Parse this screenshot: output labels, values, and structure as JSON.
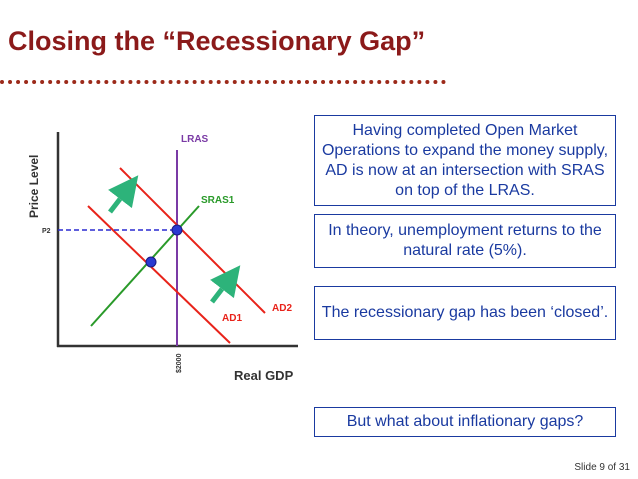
{
  "slide": {
    "title": "Closing the “Recessionary Gap”",
    "number_label": "Slide 9 of 31"
  },
  "graph": {
    "y_axis_label": "Price Level",
    "x_axis_label": "Real GDP",
    "price_tick_label": "P2",
    "gdp_tick_label": "$2000",
    "curves": {
      "lras": "LRAS",
      "sras": "SRAS1",
      "ad1": "AD1",
      "ad2": "AD2"
    },
    "colors": {
      "lras": "#7a3aa5",
      "sras": "#2a9a2a",
      "ad": "#e8231a",
      "guide": "#2a2ad0",
      "point": "#2a3ad0",
      "arrow": "#2db37a"
    }
  },
  "notes": [
    "Having completed Open Market Operations to expand the money supply, AD is now at an intersection with SRAS on top of the LRAS.",
    "In theory, unemployment returns to the natural rate (5%).",
    "The recessionary gap has been ‘closed’.",
    "But what about inflationary gaps?"
  ]
}
